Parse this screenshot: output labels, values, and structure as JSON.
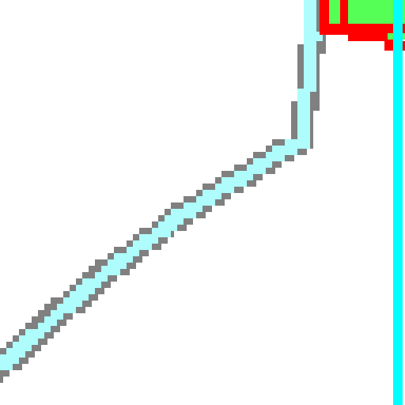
{
  "scene": {
    "background_color": "#ffffff",
    "path": {
      "outline_color": "#808080",
      "fill_color": "#aefcfc"
    },
    "marker": {
      "border_color": "#ff0000",
      "fill_color": "#55ff55"
    },
    "boundary": {
      "color": "#00ffff"
    }
  }
}
